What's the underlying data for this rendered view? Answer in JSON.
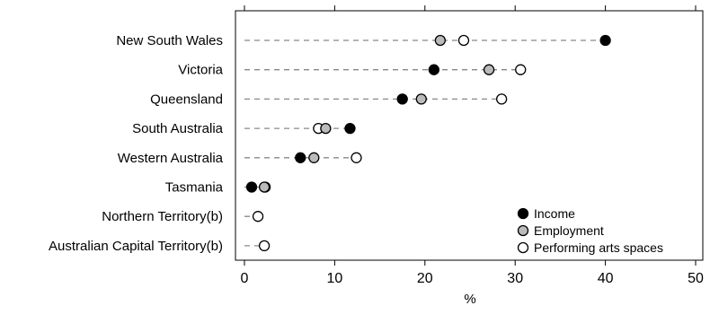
{
  "chart_data": {
    "type": "scatter",
    "title": "",
    "xlabel": "%",
    "ylabel": "",
    "xlim": [
      0,
      50
    ],
    "xticks": [
      0,
      10,
      20,
      30,
      40,
      50
    ],
    "grid": false,
    "legend_position": "bottom-right",
    "categories": [
      "New South Wales",
      "Victoria",
      "Queensland",
      "South Australia",
      "Western Australia",
      "Tasmania",
      "Northern Territory(b)",
      "Australian Capital Territory(b)"
    ],
    "series": [
      {
        "name": "Income",
        "fill": "#000000",
        "values": [
          40.0,
          21.0,
          17.5,
          11.7,
          6.2,
          0.8,
          null,
          null
        ]
      },
      {
        "name": "Employment",
        "fill": "#bbbbbb",
        "values": [
          21.7,
          27.1,
          19.6,
          9.0,
          7.7,
          2.2,
          null,
          null
        ]
      },
      {
        "name": "Performing arts spaces",
        "fill": "#ffffff",
        "values": [
          24.3,
          30.6,
          28.5,
          8.2,
          12.4,
          2.3,
          1.5,
          2.2
        ]
      }
    ]
  }
}
